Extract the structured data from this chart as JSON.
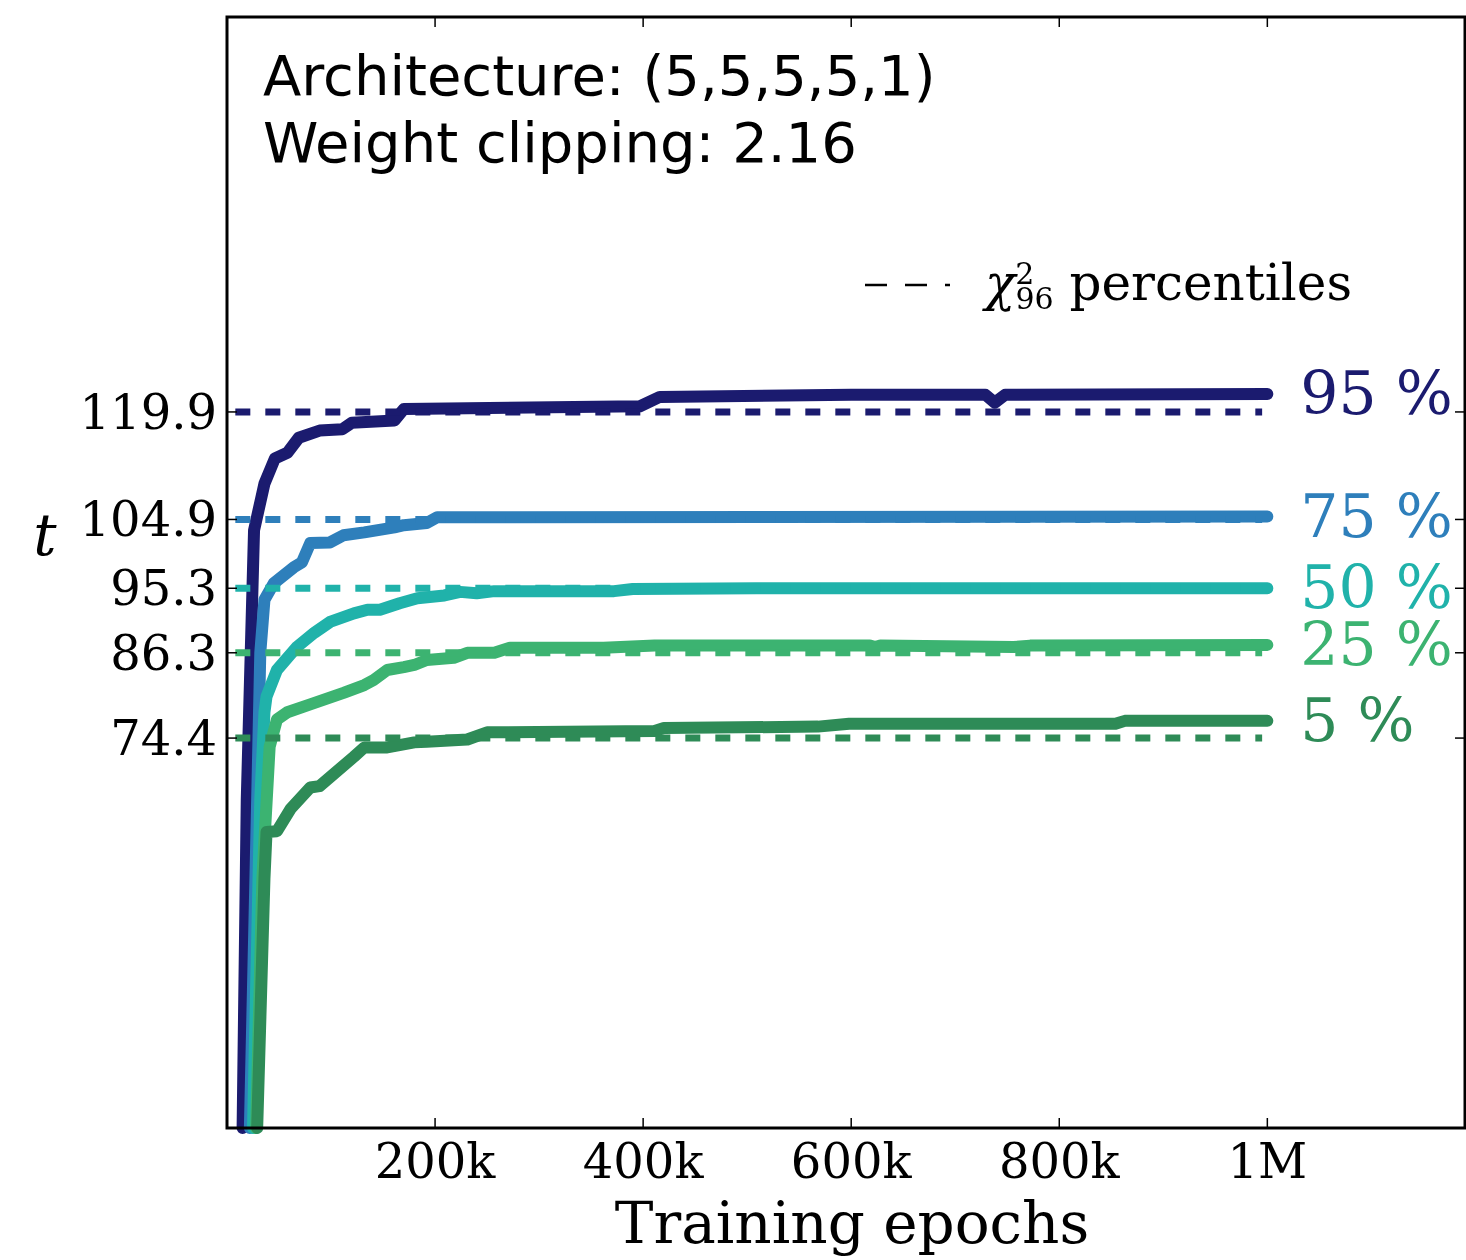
{
  "chart_data": {
    "type": "line",
    "annotations": [
      "Architecture: (5,5,5,5,1)",
      "Weight clipping: 2.16",
      "χ$^{2}$$_{96}$ percentiles"
    ],
    "xlabel": "Training epochs",
    "ylabel": "t",
    "xlim": [
      0,
      1190000
    ],
    "ylim": [
      20,
      175
    ],
    "xticks": [
      {
        "value": 200000,
        "label": "200k"
      },
      {
        "value": 400000,
        "label": "400k"
      },
      {
        "value": 600000,
        "label": "600k"
      },
      {
        "value": 800000,
        "label": "800k"
      },
      {
        "value": 1000000,
        "label": "1M"
      }
    ],
    "yticks": [
      74.4,
      86.3,
      95.3,
      104.9,
      119.9
    ],
    "series": [
      {
        "name": "95 %",
        "color": "#1b1b6f",
        "line_style": "solid",
        "x": [
          15000,
          19000,
          26000,
          36000,
          46000,
          58000,
          69000,
          89000,
          111000,
          120000,
          161000,
          170000,
          397000,
          416000,
          600000,
          729000,
          738000,
          748000,
          1000000
        ],
        "values": [
          20,
          65.9,
          103.4,
          109.9,
          113.4,
          114.2,
          116.3,
          117.3,
          117.5,
          118.4,
          118.7,
          120.3,
          120.7,
          122,
          122.3,
          122.3,
          121.2,
          122.3,
          122.4
        ]
      },
      {
        "name": "75 %",
        "color": "#2e7fbb",
        "line_style": "solid",
        "x": [
          22000,
          29000,
          32000,
          36000,
          45000,
          64000,
          72000,
          80000,
          99000,
          112000,
          132000,
          161000,
          170000,
          192000,
          202000,
          1000000
        ],
        "values": [
          20,
          65.9,
          86.3,
          93.7,
          96,
          98.2,
          98.9,
          101.6,
          101.7,
          102.7,
          103.1,
          103.8,
          104.1,
          104.4,
          105.2,
          105.3
        ]
      },
      {
        "name": "50 %",
        "color": "#20b2aa",
        "line_style": "solid",
        "x": [
          25000,
          32000,
          36000,
          38000,
          48000,
          67000,
          84000,
          99000,
          122000,
          135000,
          147000,
          166000,
          183000,
          209000,
          224000,
          240000,
          257000,
          372000,
          390000,
          509000,
          1000000
        ],
        "values": [
          20,
          65.9,
          78,
          80.2,
          83.9,
          87.1,
          89.1,
          90.6,
          91.8,
          92.3,
          92.3,
          93.2,
          93.9,
          94.3,
          94.8,
          94.6,
          94.9,
          94.9,
          95.2,
          95.3,
          95.3
        ]
      },
      {
        "name": "25 %",
        "color": "#3cb371",
        "line_style": "solid",
        "x": [
          28000,
          34000,
          41000,
          48000,
          58000,
          80000,
          112000,
          132000,
          141000,
          154000,
          170000,
          180000,
          192000,
          218000,
          231000,
          257000,
          272000,
          362000,
          411000,
          618000,
          623000,
          628000,
          756000,
          772000,
          1000000
        ],
        "values": [
          20,
          54.8,
          73.2,
          77,
          78,
          79.1,
          80.7,
          81.8,
          82.5,
          83.9,
          84.3,
          84.6,
          85.3,
          85.6,
          86.3,
          86.3,
          87,
          87,
          87.3,
          87.3,
          87.1,
          87.3,
          87.1,
          87.3,
          87.4
        ]
      },
      {
        "name": "5 %",
        "color": "#2e8b57",
        "line_style": "solid",
        "x": [
          29000,
          36000,
          38000,
          48000,
          61000,
          80000,
          89000,
          122000,
          132000,
          154000,
          180000,
          192000,
          231000,
          250000,
          411000,
          420000,
          568000,
          598000,
          854000,
          863000,
          1000000
        ],
        "values": [
          20,
          54.8,
          61.3,
          61.4,
          64.5,
          67.5,
          67.7,
          71.8,
          73.1,
          73.1,
          73.8,
          73.9,
          74.2,
          75.2,
          75.4,
          75.8,
          76,
          76.4,
          76.4,
          76.8,
          76.8
        ]
      },
      {
        "color": "#1b1b6f",
        "line_style": "dashed",
        "x": [
          8000,
          995000
        ],
        "values": [
          119.9,
          119.9
        ]
      },
      {
        "color": "#2e7fbb",
        "line_style": "dashed",
        "x": [
          8000,
          995000
        ],
        "values": [
          104.9,
          104.9
        ]
      },
      {
        "color": "#20b2aa",
        "line_style": "dashed",
        "x": [
          8000,
          995000
        ],
        "values": [
          95.3,
          95.3
        ]
      },
      {
        "color": "#3cb371",
        "line_style": "dashed",
        "x": [
          8000,
          995000
        ],
        "values": [
          86.3,
          86.3
        ]
      },
      {
        "color": "#2e8b57",
        "line_style": "dashed",
        "x": [
          8000,
          995000
        ],
        "values": [
          74.4,
          74.4
        ]
      }
    ]
  }
}
